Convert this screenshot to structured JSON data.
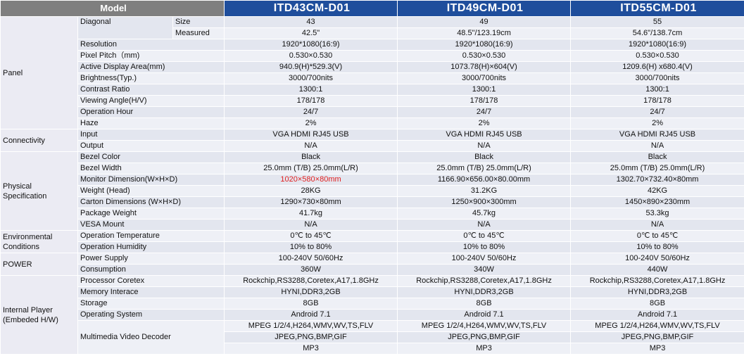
{
  "header": {
    "model_label": "Model",
    "models": [
      "ITD43CM-D01",
      "ITD49CM-D01",
      "ITD55CM-D01"
    ]
  },
  "sections": {
    "panel": "Panel",
    "connectivity": "Connectivity",
    "physical": "Physical Specification",
    "environmental": "Environmental Conditions",
    "power": "POWER",
    "player": "Internal Player (Embeded H/W)"
  },
  "rows": {
    "diagonal": {
      "label": "Diagonal",
      "sub": "Size",
      "values": [
        "43",
        "49",
        "55"
      ]
    },
    "measured": {
      "sub": "Measured",
      "values": [
        "42.5\"",
        "48.5\"/123.19cm",
        "54.6\"/138.7cm"
      ]
    },
    "resolution": {
      "label": "Resolution",
      "values": [
        "1920*1080(16:9)",
        "1920*1080(16:9)",
        "1920*1080(16:9)"
      ]
    },
    "pitch": {
      "label": "Pixel Pitch（mm)",
      "values": [
        "0.530×0.530",
        "0.530×0.530",
        "0.530×0.530"
      ]
    },
    "area": {
      "label": "Active Display Area(mm)",
      "values": [
        "940.9(H)*529.3(V)",
        "1073.78(H)×604(V)",
        "1209.6(H) x680.4(V)"
      ]
    },
    "brightness": {
      "label": "Brightness(Typ.)",
      "values": [
        "3000/700nits",
        "3000/700nits",
        "3000/700nits"
      ]
    },
    "contrast": {
      "label": "Contrast Ratio",
      "values": [
        "1300:1",
        "1300:1",
        "1300:1"
      ]
    },
    "viewing": {
      "label": "Viewing Angle(H/V)",
      "values": [
        "178/178",
        "178/178",
        "178/178"
      ]
    },
    "hour": {
      "label": "Operation Hour",
      "values": [
        "24/7",
        "24/7",
        "24/7"
      ]
    },
    "haze": {
      "label": "Haze",
      "values": [
        "2%",
        "2%",
        "2%"
      ]
    },
    "input": {
      "label": "Input",
      "values": [
        "VGA HDMI RJ45 USB",
        "VGA HDMI RJ45 USB",
        "VGA HDMI RJ45 USB"
      ]
    },
    "output": {
      "label": "Output",
      "values": [
        "N/A",
        "N/A",
        "N/A"
      ]
    },
    "bezel_color": {
      "label": "Bezel Color",
      "values": [
        "Black",
        "Black",
        "Black"
      ]
    },
    "bezel_width": {
      "label": "Bezel Width",
      "values": [
        "25.0mm (T/B) 25.0mm(L/R)",
        "25.0mm (T/B) 25.0mm(L/R)",
        "25.0mm (T/B) 25.0mm(L/R)"
      ]
    },
    "monitor_dim": {
      "label": "Monitor Dimension(W×H×D)",
      "values": [
        "1020×580×80mm",
        "1166.90×656.00×80.00mm",
        "1302.70×732.40×80mm"
      ],
      "highlight_color": "#e02020"
    },
    "weight": {
      "label": "Weight (Head)",
      "values": [
        "28KG",
        "31.2KG",
        "42KG"
      ]
    },
    "carton": {
      "label": "Carton Dimensions (W×H×D)",
      "values": [
        "1290×730×80mm",
        "1250×900×300mm",
        "1450×890×230mm"
      ]
    },
    "package": {
      "label": "Package Weight",
      "values": [
        "41.7kg",
        "45.7kg",
        "53.3kg"
      ]
    },
    "vesa": {
      "label": "VESA Mount",
      "values": [
        "N/A",
        "N/A",
        "N/A"
      ]
    },
    "op_temp": {
      "label": "Operation Temperature",
      "values": [
        "0℃ to 45℃",
        "0℃ to 45℃",
        "0℃ to 45℃"
      ]
    },
    "op_hum": {
      "label": "Operation Humidity",
      "values": [
        "10% to 80%",
        "10% to 80%",
        "10% to 80%"
      ]
    },
    "supply": {
      "label": "Power Supply",
      "values": [
        "100-240V 50/60Hz",
        "100-240V 50/60Hz",
        "100-240V 50/60Hz"
      ]
    },
    "consumption": {
      "label": "Consumption",
      "values": [
        "360W",
        "340W",
        "440W"
      ]
    },
    "processor": {
      "label": "Processor Coretex",
      "values": [
        "Rockchip,RS3288,Coretex,A17,1.8GHz",
        "Rockchip,RS3288,Coretex,A17,1.8GHz",
        "Rockchip,RS3288,Coretex,A17,1.8GHz"
      ]
    },
    "memory": {
      "label": "Memory Interace",
      "values": [
        "HYNI,DDR3,2GB",
        "HYNI,DDR3,2GB",
        "HYNI,DDR3,2GB"
      ]
    },
    "storage": {
      "label": "Storage",
      "values": [
        "8GB",
        "8GB",
        "8GB"
      ]
    },
    "os": {
      "label": "Operating System",
      "values": [
        "Android 7.1",
        "Android 7.1",
        "Android 7.1"
      ]
    },
    "decoder": {
      "label": "Multimedia Video Decoder",
      "lines": [
        [
          "MPEG 1/2/4,H264,WMV,WV,TS,FLV",
          "MPEG 1/2/4,H264,WMV,WV,TS,FLV",
          "MPEG 1/2/4,H264,WMV,WV,TS,FLV"
        ],
        [
          "JPEG,PNG,BMP,GIF",
          "JPEG,PNG,BMP,GIF",
          "JPEG,PNG,BMP,GIF"
        ],
        [
          "MP3",
          "MP3",
          "MP3"
        ]
      ]
    }
  }
}
